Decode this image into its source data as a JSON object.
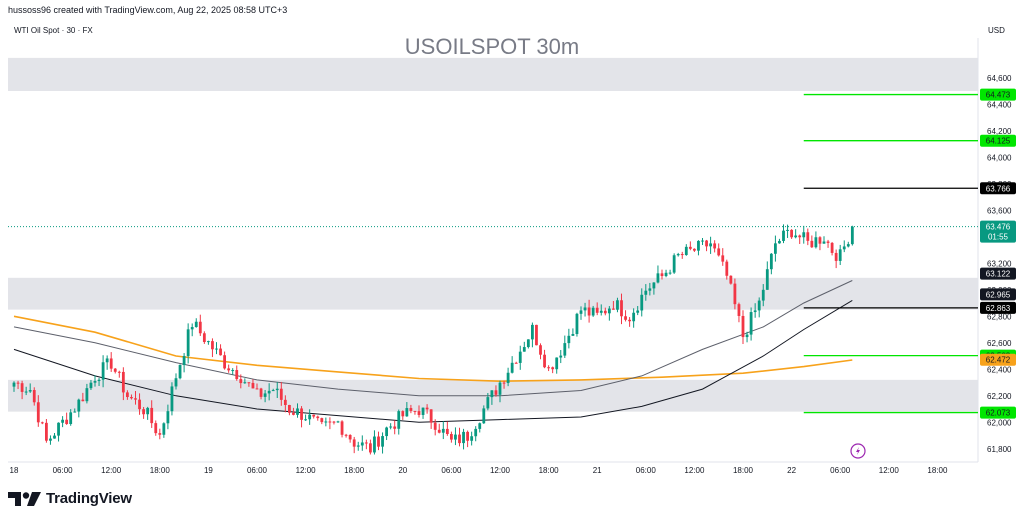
{
  "header": {
    "credit": "hussoss96 created with TradingView.com, Aug 22, 2025 08:58 UTC+3",
    "symbol": "WTI Oil Spot · 30 · FX",
    "currency": "USD",
    "logo_text": "TradingView"
  },
  "colors": {
    "bull": "#089981",
    "bear": "#f23645",
    "zone": "#e3e4e9",
    "green_level": "#00e600",
    "black_level": "#000000",
    "orange_ma": "#f7a21b",
    "gray_ma": "#5d606b",
    "black_ma": "#131722",
    "last_price": "#089981",
    "flash_icon": "#9c27b0"
  },
  "chart_data": {
    "type": "candlestick",
    "title": "USOILSPOT 30m",
    "ylim": [
      61.7,
      64.9
    ],
    "y_ticks": [
      "61,800",
      "62,000",
      "62,200",
      "62,400",
      "62,600",
      "62,800",
      "63,000",
      "63,200",
      "63,400",
      "63,600",
      "63,800",
      "64,000",
      "64,200",
      "64,400",
      "64,600"
    ],
    "x_ticks": [
      "18",
      "06:00",
      "12:00",
      "18:00",
      "19",
      "06:00",
      "12:00",
      "18:00",
      "20",
      "06:00",
      "12:00",
      "18:00",
      "21",
      "06:00",
      "12:00",
      "18:00",
      "22",
      "06:00",
      "12:00",
      "18:00"
    ],
    "x_tick_bar": [
      0,
      12,
      24,
      36,
      48,
      60,
      72,
      84,
      96,
      108,
      120,
      132,
      144,
      156,
      168,
      180,
      192,
      204,
      216,
      228
    ],
    "zones": [
      {
        "from": 64.5,
        "to": 64.75
      },
      {
        "from": 62.85,
        "to": 63.09
      },
      {
        "from": 62.08,
        "to": 62.32
      }
    ],
    "levels": [
      {
        "value": 64.473,
        "label": "64.473",
        "color": "green",
        "from_bar": 195
      },
      {
        "value": 64.125,
        "label": "64.125",
        "color": "green",
        "from_bar": 195
      },
      {
        "value": 63.766,
        "label": "63.766",
        "color": "black",
        "from_bar": 195
      },
      {
        "value": 62.863,
        "label": "62.863",
        "color": "black",
        "from_bar": 195
      },
      {
        "value": 62.503,
        "label": "62.503",
        "color": "green",
        "from_bar": 195
      },
      {
        "value": 62.073,
        "label": "62.073",
        "color": "green",
        "from_bar": 195
      }
    ],
    "price_labels": [
      {
        "value": 63.476,
        "label": "63.476",
        "sub": "01:55",
        "kind": "last"
      },
      {
        "value": 63.122,
        "label": "63.122",
        "kind": "ma_black"
      },
      {
        "value": 62.965,
        "label": "62.965",
        "kind": "ma_black"
      },
      {
        "value": 62.472,
        "label": "62.472",
        "kind": "ma_orange"
      }
    ],
    "last_price": 63.476,
    "anchors": [
      [
        0,
        62.3
      ],
      [
        4,
        62.25
      ],
      [
        8,
        61.85
      ],
      [
        12,
        62.0
      ],
      [
        16,
        62.15
      ],
      [
        20,
        62.35
      ],
      [
        24,
        62.45
      ],
      [
        28,
        62.2
      ],
      [
        32,
        62.1
      ],
      [
        36,
        61.9
      ],
      [
        40,
        62.35
      ],
      [
        44,
        62.75
      ],
      [
        48,
        62.6
      ],
      [
        52,
        62.45
      ],
      [
        56,
        62.35
      ],
      [
        60,
        62.2
      ],
      [
        64,
        62.25
      ],
      [
        68,
        62.1
      ],
      [
        72,
        62.05
      ],
      [
        76,
        61.95
      ],
      [
        80,
        62.0
      ],
      [
        84,
        61.85
      ],
      [
        88,
        61.8
      ],
      [
        92,
        61.95
      ],
      [
        96,
        62.05
      ],
      [
        100,
        62.1
      ],
      [
        104,
        62.0
      ],
      [
        108,
        61.85
      ],
      [
        112,
        61.9
      ],
      [
        116,
        62.1
      ],
      [
        120,
        62.3
      ],
      [
        124,
        62.5
      ],
      [
        128,
        62.7
      ],
      [
        132,
        62.4
      ],
      [
        136,
        62.6
      ],
      [
        140,
        62.85
      ],
      [
        144,
        62.8
      ],
      [
        148,
        62.9
      ],
      [
        152,
        62.8
      ],
      [
        156,
        63.0
      ],
      [
        160,
        63.1
      ],
      [
        164,
        63.25
      ],
      [
        168,
        63.3
      ],
      [
        172,
        63.35
      ],
      [
        176,
        63.1
      ],
      [
        180,
        62.65
      ],
      [
        184,
        62.9
      ],
      [
        188,
        63.35
      ],
      [
        192,
        63.45
      ],
      [
        196,
        63.35
      ],
      [
        200,
        63.4
      ],
      [
        202,
        63.3
      ],
      [
        204,
        63.25
      ],
      [
        206,
        63.4
      ],
      [
        207,
        63.476
      ]
    ],
    "ma_orange": [
      [
        0,
        62.8
      ],
      [
        20,
        62.68
      ],
      [
        40,
        62.5
      ],
      [
        60,
        62.43
      ],
      [
        80,
        62.38
      ],
      [
        100,
        62.33
      ],
      [
        120,
        62.31
      ],
      [
        140,
        62.32
      ],
      [
        160,
        62.34
      ],
      [
        180,
        62.37
      ],
      [
        195,
        62.42
      ],
      [
        207,
        62.47
      ]
    ],
    "ma_gray": [
      [
        0,
        62.72
      ],
      [
        20,
        62.6
      ],
      [
        40,
        62.45
      ],
      [
        60,
        62.32
      ],
      [
        80,
        62.25
      ],
      [
        100,
        62.2
      ],
      [
        120,
        62.2
      ],
      [
        140,
        62.24
      ],
      [
        155,
        62.35
      ],
      [
        170,
        62.55
      ],
      [
        185,
        62.72
      ],
      [
        195,
        62.9
      ],
      [
        207,
        63.07
      ]
    ],
    "ma_black": [
      [
        0,
        62.55
      ],
      [
        20,
        62.35
      ],
      [
        40,
        62.2
      ],
      [
        60,
        62.1
      ],
      [
        80,
        62.05
      ],
      [
        100,
        62.0
      ],
      [
        120,
        62.02
      ],
      [
        140,
        62.04
      ],
      [
        155,
        62.12
      ],
      [
        170,
        62.25
      ],
      [
        185,
        62.5
      ],
      [
        195,
        62.7
      ],
      [
        207,
        62.92
      ]
    ]
  }
}
